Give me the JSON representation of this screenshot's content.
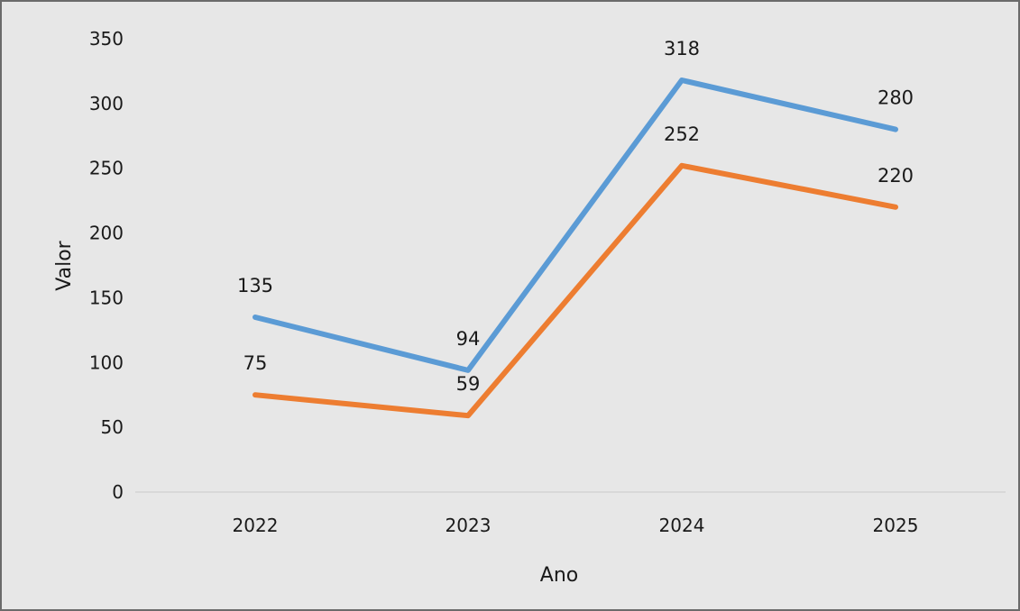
{
  "chart_data": {
    "type": "line",
    "title": "",
    "xlabel": "Ano",
    "ylabel": "Valor",
    "categories": [
      "2022",
      "2023",
      "2024",
      "2025"
    ],
    "ylim": [
      0,
      350
    ],
    "yticks": [
      0,
      50,
      100,
      150,
      200,
      250,
      300,
      350
    ],
    "grid": false,
    "legend": "none",
    "data_labels": true,
    "series": [
      {
        "color": "#5b9bd5",
        "values": [
          135,
          94,
          318,
          280
        ]
      },
      {
        "color": "#ed7d31",
        "values": [
          75,
          59,
          252,
          220
        ]
      }
    ]
  }
}
